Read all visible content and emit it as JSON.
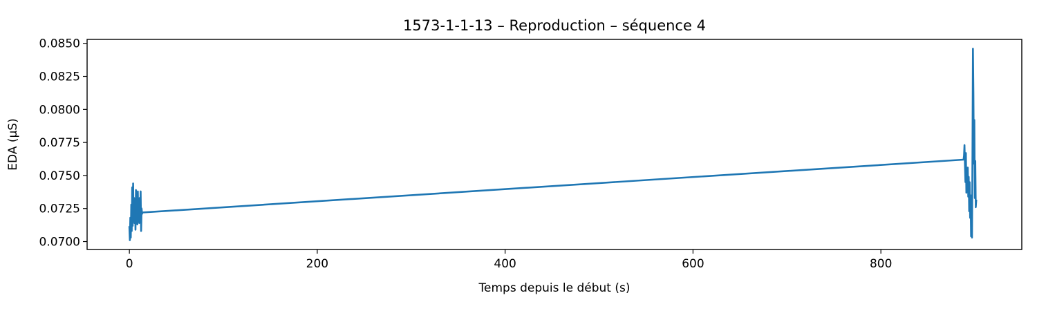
{
  "chart_data": {
    "type": "line",
    "title": "1573-1-1-13 – Reproduction – séquence 4",
    "xlabel": "Temps depuis le début (s)",
    "ylabel": "EDA (µS)",
    "xlim": [
      -45,
      950
    ],
    "ylim": [
      0.0694,
      0.0853
    ],
    "xticks": [
      0,
      200,
      400,
      600,
      800
    ],
    "xtick_labels": [
      "0",
      "200",
      "400",
      "600",
      "800"
    ],
    "yticks": [
      0.07,
      0.0725,
      0.075,
      0.0775,
      0.08,
      0.0825,
      0.085
    ],
    "ytick_labels": [
      "0.0700",
      "0.0725",
      "0.0750",
      "0.0775",
      "0.0800",
      "0.0825",
      "0.0850"
    ],
    "grid": false,
    "series": [
      {
        "color": "#1f77b4",
        "x": [
          0,
          0.5,
          1,
          1.5,
          2,
          2.5,
          3,
          3.5,
          4,
          4.5,
          5,
          5.5,
          6,
          6.5,
          7,
          7.5,
          8,
          8.5,
          9,
          9.5,
          10,
          10.5,
          11,
          11.5,
          12,
          12.5,
          13,
          13.5,
          14,
          888,
          888.5,
          889,
          889.5,
          890,
          890.5,
          891,
          891.5,
          892,
          892.5,
          893,
          893.5,
          894,
          894.5,
          895,
          895.5,
          896,
          896.5,
          897,
          897.5,
          898,
          898.5,
          899,
          899.5,
          900,
          900.5,
          901,
          901.5
        ],
        "y": [
          0.0711,
          0.0701,
          0.0718,
          0.0703,
          0.0728,
          0.0708,
          0.0741,
          0.0712,
          0.0744,
          0.0716,
          0.0733,
          0.0714,
          0.0729,
          0.0709,
          0.0739,
          0.0716,
          0.0724,
          0.0713,
          0.0738,
          0.0718,
          0.0726,
          0.0714,
          0.0733,
          0.0717,
          0.0738,
          0.0708,
          0.0725,
          0.0721,
          0.0722,
          0.0762,
          0.0765,
          0.0773,
          0.0758,
          0.0745,
          0.0767,
          0.0737,
          0.0751,
          0.0742,
          0.0756,
          0.0734,
          0.0749,
          0.0723,
          0.0745,
          0.0718,
          0.0735,
          0.0704,
          0.0728,
          0.0703,
          0.0767,
          0.0846,
          0.0812,
          0.0759,
          0.0792,
          0.0733,
          0.0761,
          0.0726,
          0.0731
        ]
      }
    ]
  }
}
